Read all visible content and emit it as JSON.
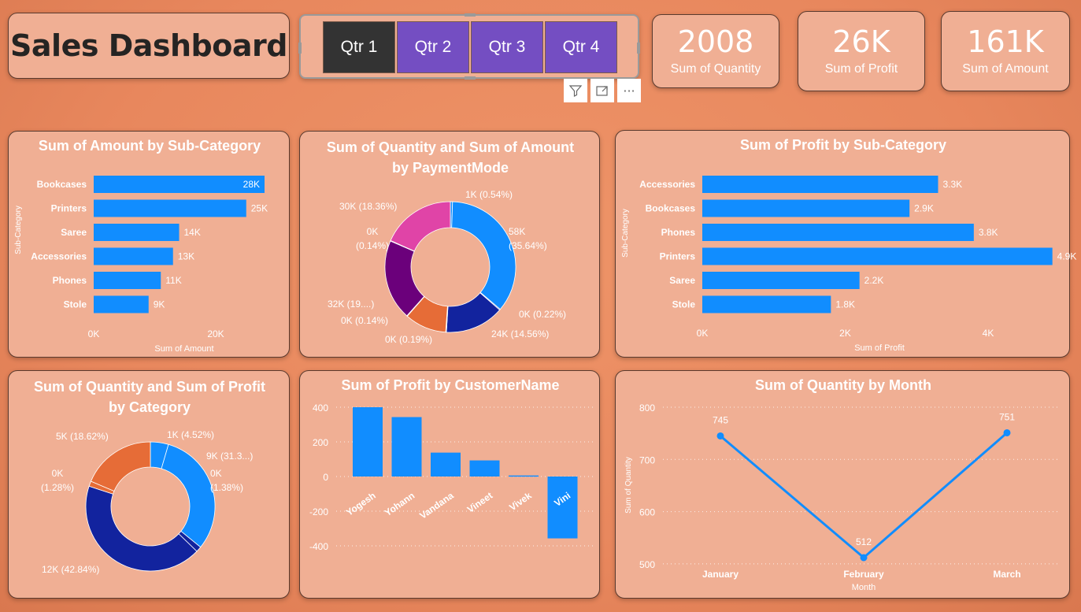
{
  "header": {
    "title": "Sales Dashboard"
  },
  "slicer": {
    "options": [
      "Qtr 1",
      "Qtr 2",
      "Qtr 3",
      "Qtr 4"
    ],
    "selected": "Qtr 1"
  },
  "visual_tools": {
    "filter_icon": "filter-icon",
    "focus_icon": "focus-mode-icon",
    "more_icon": "more-options-icon",
    "more_label": "···"
  },
  "kpis": [
    {
      "value": "2008",
      "label": "Sum of Quantity"
    },
    {
      "value": "26K",
      "label": "Sum of Profit"
    },
    {
      "value": "161K",
      "label": "Sum of Amount"
    }
  ],
  "colors": {
    "bar": "#118DFF",
    "card": "#F0AF94",
    "background": "#E8875D",
    "slicer": "#744EC2",
    "slicer_selected": "#333333"
  },
  "chart_data": [
    {
      "type": "bar",
      "orientation": "horizontal",
      "title": "Sum of Amount by Sub-Category",
      "categories": [
        "Bookcases",
        "Printers",
        "Saree",
        "Accessories",
        "Phones",
        "Stole"
      ],
      "values": [
        28,
        25,
        14,
        13,
        11,
        9
      ],
      "data_labels": [
        "28K",
        "25K",
        "14K",
        "13K",
        "11K",
        "9K"
      ],
      "xlabel": "Sum of Amount",
      "ylabel": "Sub-Category",
      "xticks": [
        "0K",
        "20K"
      ],
      "xlim": [
        0,
        20
      ],
      "unit": "K"
    },
    {
      "type": "pie",
      "donut": true,
      "title": "Sum of Quantity and Sum of Amount by PaymentMode",
      "slices": [
        {
          "value": 0.54,
          "label": "1K (0.54%)",
          "color": "#118DFF"
        },
        {
          "value": 35.64,
          "label": "58K (35.64%)",
          "color": "#118DFF"
        },
        {
          "value": 0.22,
          "label": "0K (0.22%)",
          "color": "#12239E"
        },
        {
          "value": 14.56,
          "label": "24K (14.56%)",
          "color": "#12239E"
        },
        {
          "value": 0.19,
          "label": "0K (0.19%)",
          "color": "#E66C37"
        },
        {
          "value": 10.3,
          "label": "",
          "color": "#E66C37"
        },
        {
          "value": 0.14,
          "label": "0K (0.14%)",
          "color": "#6B007B"
        },
        {
          "value": 19.9,
          "label": "32K (19....)",
          "color": "#6B007B"
        },
        {
          "value": 0.14,
          "label": "0K (0.14%)",
          "color": "#E044A7"
        },
        {
          "value": 18.36,
          "label": "30K (18.36%)",
          "color": "#E044A7"
        }
      ]
    },
    {
      "type": "bar",
      "orientation": "horizontal",
      "title": "Sum of Profit by Sub-Category",
      "categories": [
        "Accessories",
        "Bookcases",
        "Phones",
        "Printers",
        "Saree",
        "Stole"
      ],
      "values": [
        3.3,
        2.9,
        3.8,
        4.9,
        2.2,
        1.8
      ],
      "data_labels": [
        "3.3K",
        "2.9K",
        "3.8K",
        "4.9K",
        "2.2K",
        "1.8K"
      ],
      "xlabel": "Sum of Profit",
      "ylabel": "Sub-Category",
      "xticks": [
        "0K",
        "2K",
        "4K"
      ],
      "xlim": [
        0,
        4
      ],
      "unit": "K"
    },
    {
      "type": "pie",
      "donut": true,
      "title": "Sum of Quantity and Sum of Profit by Category",
      "slices": [
        {
          "value": 4.52,
          "label": "1K (4.52%)",
          "color": "#118DFF"
        },
        {
          "value": 31.3,
          "label": "9K (31.3...)",
          "color": "#118DFF"
        },
        {
          "value": 1.38,
          "label": "0K (1.38%)",
          "color": "#12239E"
        },
        {
          "value": 42.84,
          "label": "12K (42.84%)",
          "color": "#12239E"
        },
        {
          "value": 1.28,
          "label": "0K (1.28%)",
          "color": "#E66C37"
        },
        {
          "value": 18.62,
          "label": "5K (18.62%)",
          "color": "#E66C37"
        }
      ]
    },
    {
      "type": "bar",
      "orientation": "vertical",
      "title": "Sum of Profit by CustomerName",
      "categories": [
        "Yogesh",
        "Yohann",
        "Vandana",
        "Vineet",
        "Vivek",
        "Vini"
      ],
      "values": [
        400,
        343,
        138,
        93,
        6,
        -357
      ],
      "yticks": [
        "400",
        "200",
        "0",
        "-200",
        "-400"
      ],
      "ylim": [
        -400,
        400
      ],
      "grid": true
    },
    {
      "type": "line",
      "title": "Sum of Quantity by Month",
      "categories": [
        "January",
        "February",
        "March"
      ],
      "values": [
        745,
        512,
        751
      ],
      "data_labels": [
        "745",
        "512",
        "751"
      ],
      "xlabel": "Month",
      "ylabel": "Sum of Quantity",
      "yticks": [
        "800",
        "700",
        "600",
        "500"
      ],
      "ylim": [
        500,
        800
      ],
      "grid": true
    }
  ]
}
